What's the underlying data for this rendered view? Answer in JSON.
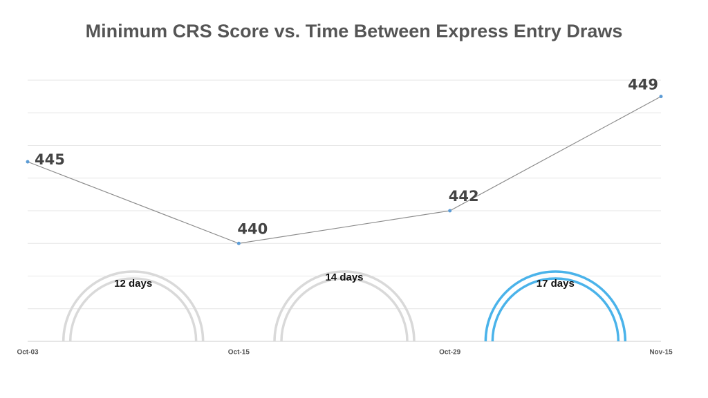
{
  "chart_data": {
    "type": "line",
    "title": "Minimum CRS Score vs. Time Between Express Entry Draws",
    "categories": [
      "Oct-03",
      "Oct-15",
      "Oct-29",
      "Nov-15"
    ],
    "values": [
      445,
      440,
      442,
      449
    ],
    "color": "#8c8c8c",
    "marker_color": "#5b9bd5",
    "ylim": [
      434,
      450
    ],
    "yticks": [
      434,
      436,
      438,
      440,
      442,
      444,
      446,
      448,
      450
    ],
    "ytick_labels": false,
    "grid": true,
    "annotations": [
      {
        "text": "12 days",
        "color": "#d9d9d9"
      },
      {
        "text": "14 days",
        "color": "#d9d9d9"
      },
      {
        "text": "17 days",
        "color": "#4ab3ea"
      }
    ]
  }
}
